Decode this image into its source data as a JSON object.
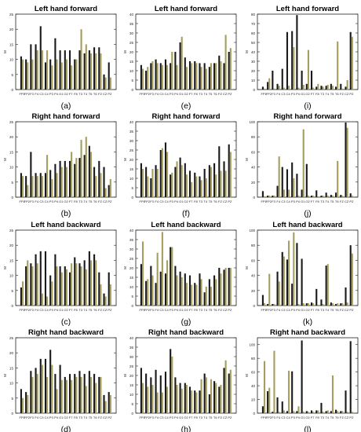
{
  "colors": {
    "dark": "#1a1a1a",
    "olive": "#a59e5e",
    "axis": "#222222"
  },
  "chart_data": [
    {
      "type": "bar",
      "panel_label": "(a)",
      "title": "Left hand forward",
      "ylabel": "M",
      "ylim": [
        0,
        25
      ],
      "yticks": [
        0,
        5,
        10,
        15,
        20,
        25
      ],
      "categories": [
        "FP1",
        "FP2",
        "F3",
        "F4",
        "C3",
        "C4",
        "P3",
        "P4",
        "O1",
        "O2",
        "F7",
        "F8",
        "T3",
        "T4",
        "T5",
        "T6",
        "FZ",
        "CZ",
        "PZ"
      ],
      "series": [
        {
          "values": [
            11,
            10,
            15,
            15,
            21,
            9,
            10,
            17,
            13,
            13,
            13,
            10,
            13,
            12,
            13,
            14,
            14,
            5,
            9
          ]
        },
        {
          "values": [
            10,
            9,
            10,
            13,
            13,
            13,
            8,
            10,
            9,
            10,
            8,
            10,
            20,
            15,
            12,
            12,
            12,
            4,
            4
          ]
        }
      ]
    },
    {
      "type": "bar",
      "panel_label": "(e)",
      "title": "Left hand forward",
      "ylabel": "M",
      "ylim": [
        0,
        40
      ],
      "yticks": [
        0,
        5,
        10,
        15,
        20,
        25,
        30,
        35,
        40
      ],
      "categories": [
        "FP1",
        "FP2",
        "F3",
        "F4",
        "C3",
        "C4",
        "P3",
        "P4",
        "O1",
        "O2",
        "F7",
        "F8",
        "T3",
        "T4",
        "T5",
        "T6",
        "FZ",
        "CZ",
        "PZ"
      ],
      "series": [
        {
          "values": [
            13,
            10,
            14,
            16,
            14,
            16,
            14,
            20,
            25,
            17,
            15,
            15,
            14,
            14,
            12,
            14,
            18,
            14,
            20
          ]
        },
        {
          "values": [
            11,
            12,
            15,
            14,
            13,
            13,
            20,
            13,
            28,
            12,
            14,
            14,
            12,
            11,
            14,
            14,
            15,
            29,
            22
          ]
        }
      ]
    },
    {
      "type": "bar",
      "panel_label": "(i)",
      "title": "Left hand forward",
      "ylabel": "M",
      "ylim": [
        0,
        80
      ],
      "yticks": [
        0,
        10,
        20,
        30,
        40,
        50,
        60,
        70,
        80
      ],
      "categories": [
        "FP1",
        "FP2",
        "F3",
        "F4",
        "C3",
        "C4",
        "P3",
        "P4",
        "O1",
        "O2",
        "F7",
        "F8",
        "T3",
        "T4",
        "T5",
        "T6",
        "FZ",
        "CZ",
        "PZ"
      ],
      "series": [
        {
          "values": [
            3,
            8,
            20,
            6,
            22,
            61,
            62,
            79,
            20,
            6,
            20,
            3,
            4,
            4,
            6,
            3,
            6,
            3,
            61
          ]
        },
        {
          "values": [
            1,
            12,
            1,
            4,
            2,
            4,
            45,
            2,
            5,
            42,
            2,
            6,
            3,
            5,
            4,
            51,
            1,
            10,
            56
          ]
        }
      ]
    },
    {
      "type": "bar",
      "panel_label": "(b)",
      "title": "Right hand forward",
      "ylabel": "M",
      "ylim": [
        0,
        25
      ],
      "yticks": [
        0,
        5,
        10,
        15,
        20,
        25
      ],
      "categories": [
        "FP1",
        "FP2",
        "F3",
        "F4",
        "C3",
        "C4",
        "P3",
        "P4",
        "O1",
        "O2",
        "F7",
        "F8",
        "T3",
        "T4",
        "T5",
        "T6",
        "FZ",
        "CZ",
        "PZ"
      ],
      "series": [
        {
          "values": [
            8,
            7,
            15,
            8,
            8,
            8,
            9,
            11,
            12,
            12,
            12,
            11,
            13,
            14,
            17,
            10,
            12,
            10,
            4
          ]
        },
        {
          "values": [
            7,
            4,
            7,
            7,
            7,
            14,
            6,
            8,
            10,
            10,
            15,
            13,
            19,
            20,
            15,
            7,
            8,
            3,
            6
          ]
        }
      ]
    },
    {
      "type": "bar",
      "panel_label": "(f)",
      "title": "Right hand forward",
      "ylabel": "M",
      "ylim": [
        0,
        40
      ],
      "yticks": [
        0,
        5,
        10,
        15,
        20,
        25,
        30,
        35,
        40
      ],
      "categories": [
        "FP1",
        "FP2",
        "F3",
        "F4",
        "C3",
        "C4",
        "P3",
        "P4",
        "O1",
        "O2",
        "F7",
        "F8",
        "T3",
        "T4",
        "T5",
        "T6",
        "FZ",
        "CZ",
        "PZ"
      ],
      "series": [
        {
          "values": [
            18,
            16,
            10,
            17,
            25,
            29,
            12,
            16,
            21,
            18,
            14,
            13,
            11,
            15,
            17,
            18,
            27,
            19,
            28
          ]
        },
        {
          "values": [
            15,
            11,
            15,
            15,
            26,
            24,
            13,
            19,
            17,
            12,
            8,
            11,
            9,
            10,
            16,
            12,
            14,
            14,
            24
          ]
        }
      ]
    },
    {
      "type": "bar",
      "panel_label": "(j)",
      "title": "Right hand forward",
      "ylabel": "M",
      "ylim": [
        0,
        100
      ],
      "yticks": [
        0,
        20,
        40,
        60,
        80,
        100
      ],
      "categories": [
        "FP1",
        "FP2",
        "F3",
        "F4",
        "C3",
        "C4",
        "P3",
        "P4",
        "O1",
        "O2",
        "F7",
        "F8",
        "T3",
        "T4",
        "T5",
        "T6",
        "FZ",
        "CZ",
        "PZ"
      ],
      "series": [
        {
          "values": [
            8,
            2,
            2,
            15,
            40,
            37,
            46,
            31,
            10,
            44,
            2,
            9,
            2,
            6,
            3,
            6,
            3,
            99,
            5
          ]
        },
        {
          "values": [
            1,
            2,
            2,
            54,
            10,
            10,
            25,
            2,
            90,
            2,
            2,
            1,
            2,
            2,
            2,
            48,
            2,
            92,
            2
          ]
        }
      ]
    },
    {
      "type": "bar",
      "panel_label": "(c)",
      "title": "Left hand backward",
      "ylabel": "M",
      "ylim": [
        0,
        25
      ],
      "yticks": [
        0,
        5,
        10,
        15,
        20,
        25
      ],
      "categories": [
        "FP1",
        "FP2",
        "F3",
        "F4",
        "C3",
        "C4",
        "P3",
        "P4",
        "O1",
        "O2",
        "F7",
        "F8",
        "T3",
        "T4",
        "T5",
        "T6",
        "FZ",
        "CZ",
        "PZ"
      ],
      "series": [
        {
          "values": [
            6,
            13,
            14,
            17,
            18,
            18,
            10,
            17,
            13,
            13,
            11,
            16,
            14,
            15,
            18,
            17,
            11,
            4,
            11
          ]
        },
        {
          "values": [
            8,
            15,
            13,
            14,
            4,
            3,
            8,
            13,
            11,
            12,
            14,
            14,
            13,
            12,
            15,
            15,
            7,
            3,
            7
          ]
        }
      ]
    },
    {
      "type": "bar",
      "panel_label": "(g)",
      "title": "Left hand backward",
      "ylabel": "M",
      "ylim": [
        0,
        40
      ],
      "yticks": [
        0,
        5,
        10,
        15,
        20,
        25,
        30,
        35,
        40
      ],
      "categories": [
        "FP1",
        "FP2",
        "F3",
        "F4",
        "C3",
        "C4",
        "P3",
        "P4",
        "O1",
        "O2",
        "F7",
        "F8",
        "T3",
        "T4",
        "T5",
        "T6",
        "FZ",
        "CZ",
        "PZ"
      ],
      "series": [
        {
          "values": [
            22,
            13,
            21,
            12,
            18,
            17,
            31,
            21,
            18,
            17,
            16,
            12,
            17,
            7,
            14,
            16,
            20,
            19,
            20
          ]
        },
        {
          "values": [
            34,
            14,
            16,
            28,
            39,
            24,
            31,
            16,
            15,
            12,
            11,
            11,
            14,
            10,
            10,
            14,
            17,
            20,
            20
          ]
        }
      ]
    },
    {
      "type": "bar",
      "panel_label": "(k)",
      "title": "Left hand backward",
      "ylabel": "M",
      "ylim": [
        0,
        100
      ],
      "yticks": [
        0,
        20,
        40,
        60,
        80,
        100
      ],
      "categories": [
        "FP1",
        "FP2",
        "F3",
        "F4",
        "C3",
        "C4",
        "P3",
        "P4",
        "O1",
        "O2",
        "F7",
        "F8",
        "T3",
        "T4",
        "T5",
        "T6",
        "FZ",
        "CZ",
        "PZ"
      ],
      "series": [
        {
          "values": [
            14,
            2,
            2,
            45,
            71,
            61,
            29,
            83,
            62,
            3,
            4,
            22,
            8,
            53,
            4,
            2,
            3,
            24,
            80
          ]
        },
        {
          "values": [
            3,
            42,
            2,
            32,
            65,
            86,
            97,
            2,
            3,
            3,
            3,
            1,
            2,
            55,
            3,
            3,
            3,
            4,
            69
          ]
        }
      ]
    },
    {
      "type": "bar",
      "panel_label": "(d)",
      "title": "Right hand backward",
      "ylabel": "M",
      "ylim": [
        0,
        25
      ],
      "yticks": [
        0,
        5,
        10,
        15,
        20,
        25
      ],
      "categories": [
        "FP1",
        "FP2",
        "F3",
        "F4",
        "C3",
        "C4",
        "P3",
        "P4",
        "O1",
        "O2",
        "F7",
        "F8",
        "T3",
        "T4",
        "T5",
        "T6",
        "FZ",
        "CZ",
        "PZ"
      ],
      "series": [
        {
          "values": [
            8,
            7,
            14,
            15,
            18,
            18,
            21,
            13,
            16,
            12,
            13,
            13,
            14,
            13,
            14,
            13,
            12,
            6,
            7
          ]
        },
        {
          "values": [
            5,
            6,
            12,
            13,
            16,
            12,
            16,
            8,
            11,
            11,
            11,
            12,
            12,
            9,
            12,
            10,
            12,
            4,
            6
          ]
        }
      ]
    },
    {
      "type": "bar",
      "panel_label": "(h)",
      "title": "Right hand backward",
      "ylabel": "M",
      "ylim": [
        0,
        40
      ],
      "yticks": [
        0,
        5,
        10,
        15,
        20,
        25,
        30,
        35,
        40
      ],
      "categories": [
        "FP1",
        "FP2",
        "F3",
        "F4",
        "C3",
        "C4",
        "P3",
        "P4",
        "O1",
        "O2",
        "F7",
        "F8",
        "T3",
        "T4",
        "T5",
        "T6",
        "FZ",
        "CZ",
        "PZ"
      ],
      "series": [
        {
          "values": [
            24,
            21,
            19,
            23,
            20,
            22,
            34,
            19,
            16,
            16,
            14,
            12,
            12,
            21,
            10,
            17,
            14,
            24,
            21
          ]
        },
        {
          "values": [
            16,
            14,
            15,
            11,
            11,
            14,
            30,
            15,
            13,
            15,
            12,
            11,
            18,
            19,
            18,
            16,
            15,
            28,
            23
          ]
        }
      ]
    },
    {
      "type": "bar",
      "panel_label": "(l)",
      "title": "Right hand backward",
      "ylabel": "M",
      "ylim": [
        0,
        110
      ],
      "yticks": [
        0,
        20,
        40,
        60,
        80,
        100
      ],
      "categories": [
        "FP1",
        "FP2",
        "F3",
        "F4",
        "C3",
        "C4",
        "P3",
        "P4",
        "O1",
        "O2",
        "F7",
        "F8",
        "T3",
        "T4",
        "T5",
        "T6",
        "FZ",
        "CZ",
        "PZ"
      ],
      "series": [
        {
          "values": [
            10,
            32,
            2,
            23,
            17,
            3,
            61,
            3,
            106,
            3,
            4,
            4,
            15,
            3,
            3,
            5,
            3,
            33,
            105
          ]
        },
        {
          "values": [
            76,
            37,
            91,
            2,
            4,
            62,
            3,
            10,
            2,
            2,
            2,
            4,
            2,
            4,
            55,
            3,
            3,
            2,
            2
          ]
        }
      ]
    }
  ]
}
